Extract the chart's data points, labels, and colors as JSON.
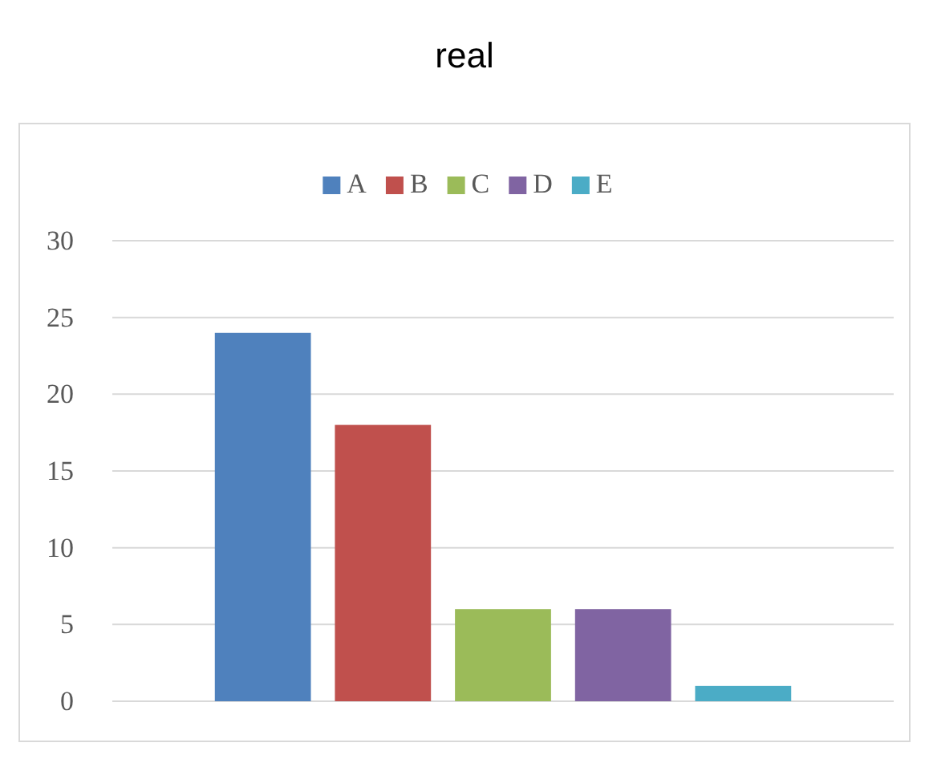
{
  "chart_data": {
    "type": "bar",
    "title": "real",
    "categories": [
      null
    ],
    "series": [
      {
        "name": "A",
        "color": "#4f81bd",
        "values": [
          24
        ]
      },
      {
        "name": "B",
        "color": "#c0504d",
        "values": [
          18
        ]
      },
      {
        "name": "C",
        "color": "#9bbb59",
        "values": [
          6
        ]
      },
      {
        "name": "D",
        "color": "#8064a2",
        "values": [
          6
        ]
      },
      {
        "name": "E",
        "color": "#4bacc6",
        "values": [
          1
        ]
      }
    ],
    "ylim": [
      0,
      30
    ],
    "yticks": [
      0,
      5,
      10,
      15,
      20,
      25,
      30
    ],
    "grid": "y",
    "legend": "top"
  }
}
